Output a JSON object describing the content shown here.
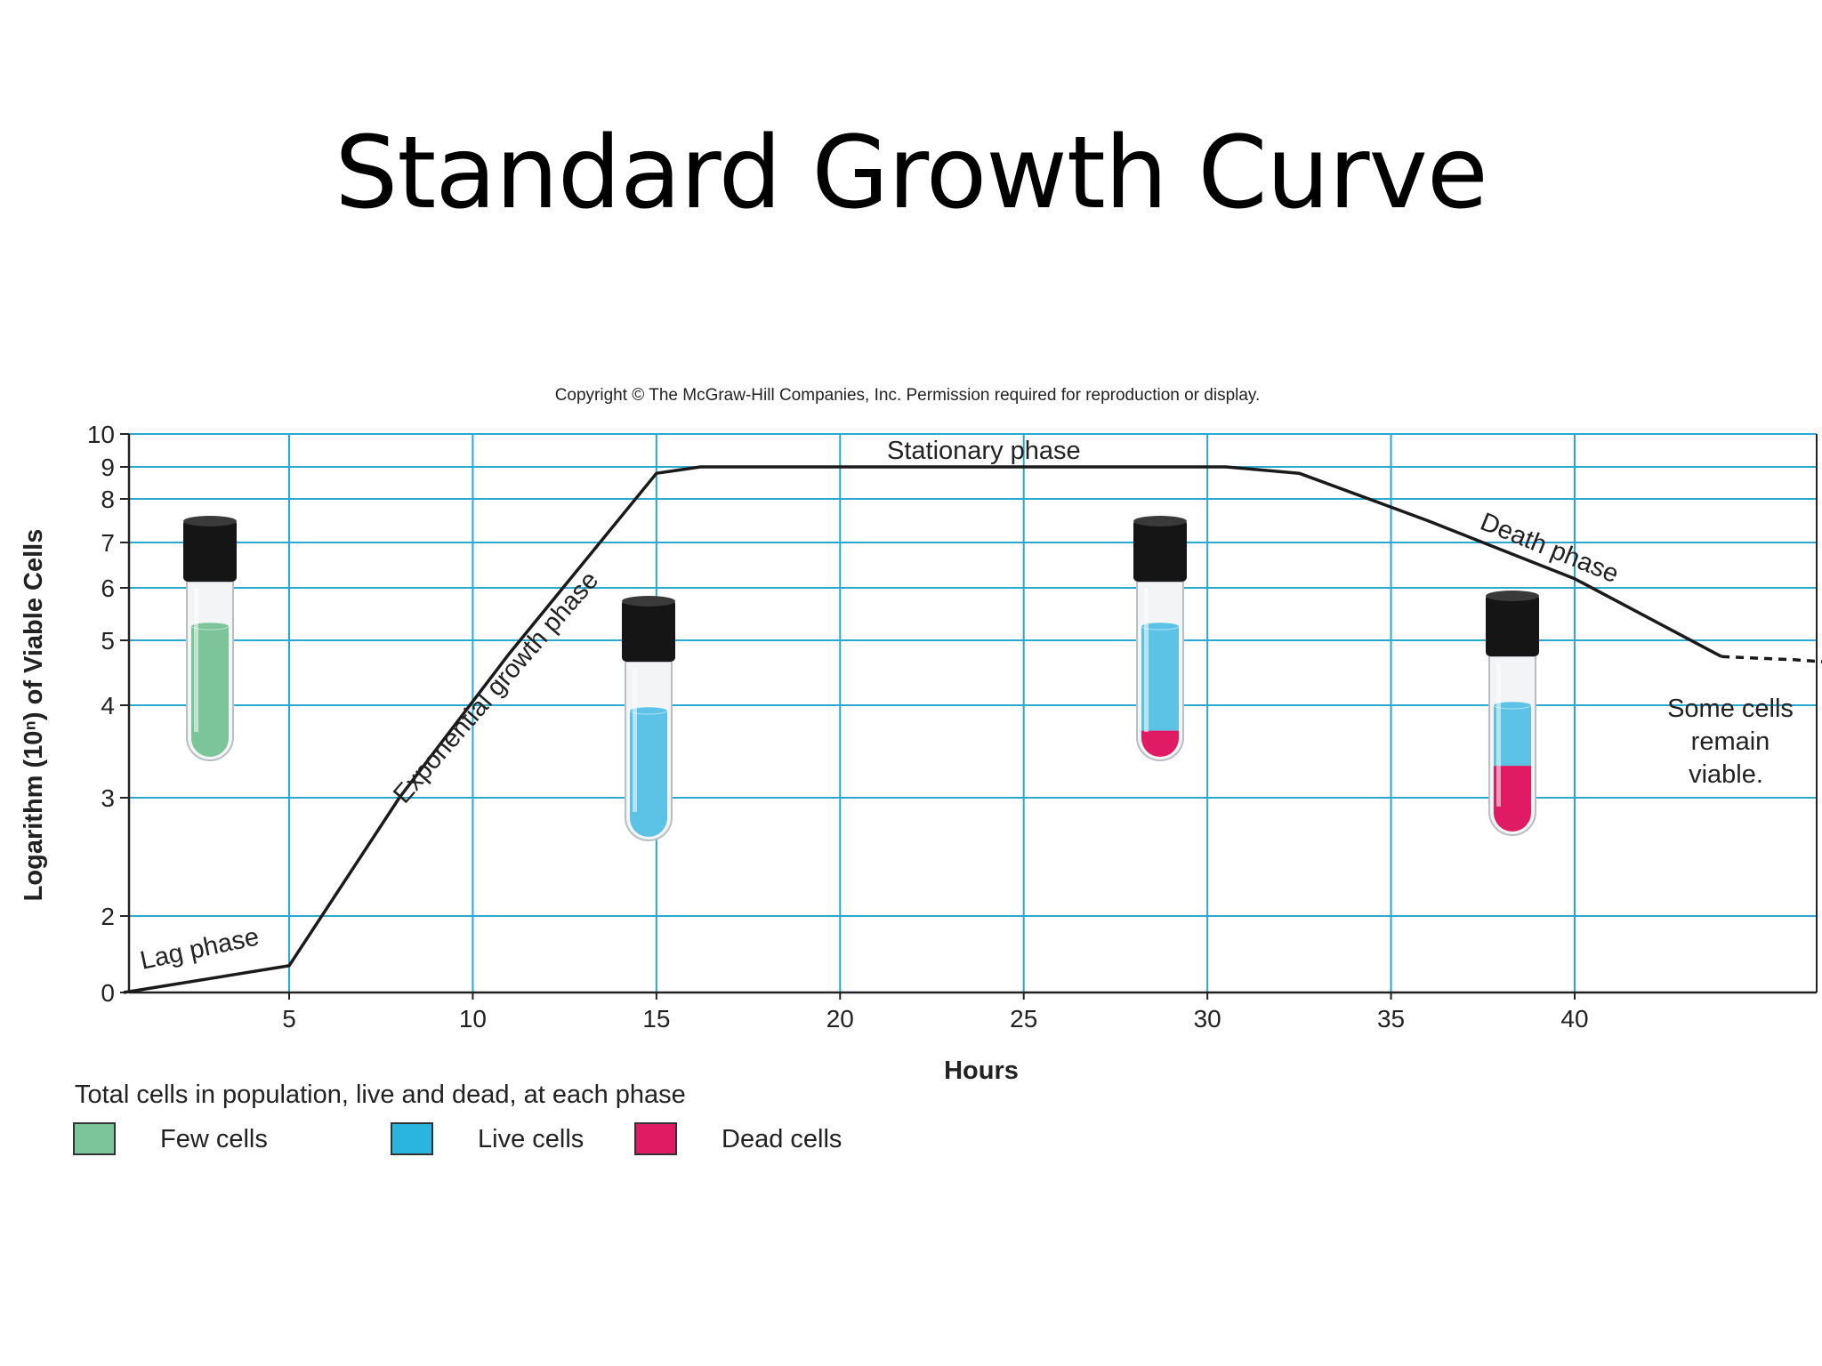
{
  "slide": {
    "title": "Standard Growth Curve"
  },
  "copyright": "Copyright © The McGraw-Hill Companies, Inc. Permission required for reproduction or display.",
  "colors": {
    "grid": "#2aa9cf",
    "curve": "#1a1a1a",
    "few_cells": "#7cc49a",
    "live_cells": "#5cc3e6",
    "dead_cells": "#e01a63",
    "cap": "#151515"
  },
  "chart_data": {
    "type": "line",
    "xlabel": "Hours",
    "ylabel": "Logarithm (10ⁿ) of Viable Cells",
    "x_ticks": [
      5,
      10,
      15,
      20,
      25,
      30,
      35,
      40
    ],
    "y_ticks": [
      0,
      2,
      3,
      4,
      5,
      6,
      7,
      8,
      9,
      10
    ],
    "xlim": [
      0.5,
      48.5
    ],
    "ylim": [
      0,
      10
    ],
    "grid": true,
    "series": [
      {
        "points": [
          [
            0.5,
            0
          ],
          [
            5,
            0.7
          ],
          [
            8,
            3
          ],
          [
            11,
            4.8
          ],
          [
            15,
            8.8
          ],
          [
            16.2,
            9
          ],
          [
            30.5,
            9
          ],
          [
            32.5,
            8.8
          ],
          [
            36,
            7.5
          ],
          [
            40,
            6.2
          ],
          [
            44,
            4.75
          ]
        ],
        "style": "solid"
      },
      {
        "points": [
          [
            44,
            4.75
          ],
          [
            46,
            4.7
          ],
          [
            48.5,
            4.6
          ]
        ],
        "style": "dashed"
      }
    ],
    "annotations": [
      {
        "key": "lag",
        "text": "Lag phase"
      },
      {
        "key": "exp",
        "text": "Exponential growth phase"
      },
      {
        "key": "stat",
        "text": "Stationary phase"
      },
      {
        "key": "death",
        "text": "Death phase"
      },
      {
        "key": "viable",
        "lines": [
          "Some cells",
          "remain",
          "viable."
        ]
      }
    ],
    "tubes": [
      {
        "phase": "lag",
        "few": 1.0,
        "live": 0,
        "dead": 0
      },
      {
        "phase": "exponential",
        "few": 0,
        "live": 1.0,
        "dead": 0
      },
      {
        "phase": "stationary",
        "few": 0,
        "live": 0.8,
        "dead": 0.2
      },
      {
        "phase": "death",
        "few": 0,
        "live": 0.48,
        "dead": 0.52
      }
    ]
  },
  "legend": {
    "caption": "Total cells in population, live and dead, at each phase",
    "items": [
      {
        "label": "Few cells",
        "color": "#7cc49a"
      },
      {
        "label": "Live cells",
        "color": "#2ab4e0"
      },
      {
        "label": "Dead cells",
        "color": "#e01a63"
      }
    ]
  }
}
